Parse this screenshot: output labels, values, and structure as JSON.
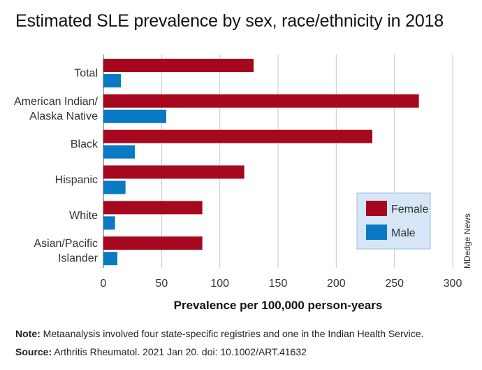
{
  "title": "Estimated SLE prevalence by sex, race/ethnicity in 2018",
  "credit": "MDedge News",
  "notes": {
    "note_label": "Note:",
    "note_text": "Metaanalysis involved four state-specific registries and one in the Indian Health Service.",
    "source_label": "Source:",
    "source_text": "Arthritis Rheumatol. 2021 Jan 20. doi: 10.1002/ART.41632"
  },
  "colors": {
    "female": "#a5081f",
    "male": "#0a7ac4",
    "legend_bg": "#d6e6f7",
    "legend_border": "#9cbfe0",
    "grid": "#c8c8c8"
  },
  "chart_data": {
    "type": "bar",
    "orientation": "horizontal",
    "categories": [
      [
        "Total"
      ],
      [
        "American Indian/",
        "Alaska Native"
      ],
      [
        "Black"
      ],
      [
        "Hispanic"
      ],
      [
        "White"
      ],
      [
        "Asian/Pacific",
        "Islander"
      ]
    ],
    "series": [
      {
        "name": "Female",
        "values": [
          129,
          271,
          231,
          121,
          85,
          85
        ]
      },
      {
        "name": "Male",
        "values": [
          15,
          54,
          27,
          19,
          10,
          12
        ]
      }
    ],
    "xlabel": "Prevalence per 100,000 person-years",
    "xlim": [
      0,
      300
    ],
    "xticks": [
      0,
      50,
      100,
      150,
      200,
      250,
      300
    ],
    "grid": true,
    "legend_position": "bottom-right"
  }
}
